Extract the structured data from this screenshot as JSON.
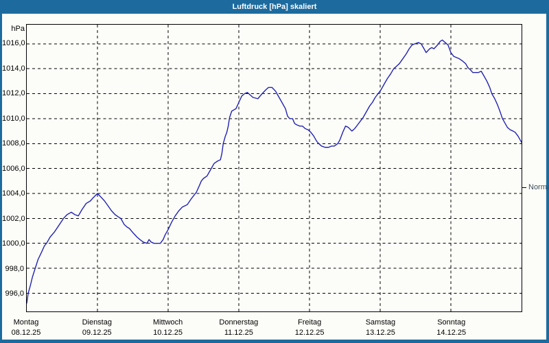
{
  "window": {
    "title": "Luftdruck [hPa] skaliert"
  },
  "colors": {
    "frame": "#1d6b9e",
    "paper": "#fcfdf8",
    "line": "#2121b3",
    "grid": "#000000",
    "normal_text": "#3d4c59"
  },
  "chart_data": {
    "type": "line",
    "title": "Luftdruck [hPa] skaliert",
    "ylabel": "hPa",
    "ylim": [
      994.5,
      1017.5
    ],
    "grid": "dashed",
    "legend_position": "none",
    "yticks": {
      "values": [
        1016,
        1014,
        1012,
        1010,
        1008,
        1006,
        1004,
        1002,
        1000,
        998,
        996
      ],
      "labels": [
        "1016,0",
        "1014,0",
        "1012,0",
        "1010,0",
        "1008,0",
        "1006,0",
        "1004,0",
        "1002,0",
        "1000,0",
        "998,0",
        "996,0"
      ]
    },
    "x_days": [
      {
        "name": "Montag",
        "date": "08.12.25"
      },
      {
        "name": "Dienstag",
        "date": "09.12.25"
      },
      {
        "name": "Mittwoch",
        "date": "10.12.25"
      },
      {
        "name": "Donnerstag",
        "date": "11.12.25"
      },
      {
        "name": "Freitag",
        "date": "12.12.25"
      },
      {
        "name": "Samstag",
        "date": "13.12.25"
      },
      {
        "name": "Sonntag",
        "date": "14.12.25"
      }
    ],
    "annotation": {
      "label": "Normal",
      "value": 1004.5
    },
    "series": [
      {
        "name": "Luftdruck",
        "points": [
          [
            0,
            995.2
          ],
          [
            0.02,
            996
          ],
          [
            0.05,
            996.6
          ],
          [
            0.08,
            997.3
          ],
          [
            0.12,
            998
          ],
          [
            0.16,
            998.7
          ],
          [
            0.21,
            999.3
          ],
          [
            0.25,
            999.8
          ],
          [
            0.28,
            1000
          ],
          [
            0.33,
            1000.5
          ],
          [
            0.39,
            1000.9
          ],
          [
            0.45,
            1001.4
          ],
          [
            0.52,
            1002
          ],
          [
            0.57,
            1002.3
          ],
          [
            0.63,
            1002.5
          ],
          [
            0.68,
            1002.3
          ],
          [
            0.73,
            1002.2
          ],
          [
            0.78,
            1002.7
          ],
          [
            0.84,
            1003.2
          ],
          [
            0.9,
            1003.4
          ],
          [
            0.93,
            1003.6
          ],
          [
            1,
            1004
          ],
          [
            1.05,
            1003.7
          ],
          [
            1.1,
            1003.4
          ],
          [
            1.15,
            1003
          ],
          [
            1.2,
            1002.6
          ],
          [
            1.25,
            1002.3
          ],
          [
            1.3,
            1002.1
          ],
          [
            1.33,
            1002
          ],
          [
            1.38,
            1001.5
          ],
          [
            1.42,
            1001.3
          ],
          [
            1.45,
            1001.2
          ],
          [
            1.51,
            1000.8
          ],
          [
            1.56,
            1000.5
          ],
          [
            1.6,
            1000.3
          ],
          [
            1.65,
            1000.1
          ],
          [
            1.7,
            1000
          ],
          [
            1.73,
            1000.3
          ],
          [
            1.76,
            1000.1
          ],
          [
            1.8,
            1000
          ],
          [
            1.85,
            1000
          ],
          [
            1.89,
            1000
          ],
          [
            1.93,
            1000.3
          ],
          [
            1.96,
            1000.7
          ],
          [
            2,
            1001.1
          ],
          [
            2.05,
            1001.7
          ],
          [
            2.1,
            1002.2
          ],
          [
            2.15,
            1002.6
          ],
          [
            2.2,
            1002.9
          ],
          [
            2.27,
            1003.1
          ],
          [
            2.33,
            1003.6
          ],
          [
            2.4,
            1004.1
          ],
          [
            2.44,
            1004.6
          ],
          [
            2.47,
            1005
          ],
          [
            2.5,
            1005.2
          ],
          [
            2.55,
            1005.4
          ],
          [
            2.61,
            1006
          ],
          [
            2.65,
            1006.4
          ],
          [
            2.7,
            1006.6
          ],
          [
            2.74,
            1006.7
          ],
          [
            2.76,
            1007.2
          ],
          [
            2.78,
            1008
          ],
          [
            2.81,
            1008.6
          ],
          [
            2.83,
            1008.9
          ],
          [
            2.85,
            1009.4
          ],
          [
            2.87,
            1010.1
          ],
          [
            2.9,
            1010.6
          ],
          [
            2.93,
            1010.7
          ],
          [
            2.96,
            1010.8
          ],
          [
            3,
            1011.3
          ],
          [
            3.04,
            1011.8
          ],
          [
            3.08,
            1012
          ],
          [
            3.12,
            1012.1
          ],
          [
            3.16,
            1011.9
          ],
          [
            3.2,
            1011.7
          ],
          [
            3.27,
            1011.6
          ],
          [
            3.33,
            1012
          ],
          [
            3.38,
            1012.3
          ],
          [
            3.42,
            1012.5
          ],
          [
            3.47,
            1012.5
          ],
          [
            3.52,
            1012.2
          ],
          [
            3.54,
            1012
          ],
          [
            3.58,
            1011.6
          ],
          [
            3.62,
            1011.2
          ],
          [
            3.66,
            1010.8
          ],
          [
            3.69,
            1010.2
          ],
          [
            3.72,
            1010
          ],
          [
            3.76,
            1010
          ],
          [
            3.79,
            1009.6
          ],
          [
            3.82,
            1009.5
          ],
          [
            3.86,
            1009.4
          ],
          [
            3.9,
            1009.4
          ],
          [
            3.94,
            1009.2
          ],
          [
            3.98,
            1009.1
          ],
          [
            4.02,
            1008.9
          ],
          [
            4.06,
            1008.6
          ],
          [
            4.1,
            1008.2
          ],
          [
            4.13,
            1008
          ],
          [
            4.17,
            1007.8
          ],
          [
            4.22,
            1007.7
          ],
          [
            4.27,
            1007.7
          ],
          [
            4.31,
            1007.8
          ],
          [
            4.35,
            1007.8
          ],
          [
            4.4,
            1008
          ],
          [
            4.43,
            1008.3
          ],
          [
            4.47,
            1008.9
          ],
          [
            4.51,
            1009.4
          ],
          [
            4.55,
            1009.3
          ],
          [
            4.6,
            1009
          ],
          [
            4.64,
            1009.2
          ],
          [
            4.68,
            1009.5
          ],
          [
            4.72,
            1009.8
          ],
          [
            4.76,
            1010.1
          ],
          [
            4.81,
            1010.6
          ],
          [
            4.85,
            1011
          ],
          [
            4.89,
            1011.3
          ],
          [
            4.93,
            1011.7
          ],
          [
            4.97,
            1012
          ],
          [
            5.01,
            1012.3
          ],
          [
            5.06,
            1012.8
          ],
          [
            5.1,
            1013.2
          ],
          [
            5.15,
            1013.6
          ],
          [
            5.19,
            1014
          ],
          [
            5.23,
            1014.2
          ],
          [
            5.27,
            1014.4
          ],
          [
            5.32,
            1014.8
          ],
          [
            5.37,
            1015.2
          ],
          [
            5.41,
            1015.6
          ],
          [
            5.45,
            1015.9
          ],
          [
            5.49,
            1016
          ],
          [
            5.54,
            1016.1
          ],
          [
            5.58,
            1016
          ],
          [
            5.62,
            1015.6
          ],
          [
            5.65,
            1015.3
          ],
          [
            5.7,
            1015.6
          ],
          [
            5.73,
            1015.7
          ],
          [
            5.76,
            1015.6
          ],
          [
            5.81,
            1015.9
          ],
          [
            5.85,
            1016.2
          ],
          [
            5.88,
            1016.3
          ],
          [
            5.92,
            1016.1
          ],
          [
            5.96,
            1015.9
          ],
          [
            6,
            1015.3
          ],
          [
            6.04,
            1015
          ],
          [
            6.08,
            1014.9
          ],
          [
            6.12,
            1014.8
          ],
          [
            6.17,
            1014.6
          ],
          [
            6.21,
            1014.4
          ],
          [
            6.24,
            1014.1
          ],
          [
            6.28,
            1013.9
          ],
          [
            6.31,
            1013.7
          ],
          [
            6.35,
            1013.7
          ],
          [
            6.39,
            1013.7
          ],
          [
            6.43,
            1013.8
          ],
          [
            6.47,
            1013.4
          ],
          [
            6.51,
            1013
          ],
          [
            6.55,
            1012.5
          ],
          [
            6.58,
            1012
          ],
          [
            6.62,
            1011.6
          ],
          [
            6.66,
            1011.1
          ],
          [
            6.7,
            1010.5
          ],
          [
            6.73,
            1010
          ],
          [
            6.77,
            1009.6
          ],
          [
            6.8,
            1009.3
          ],
          [
            6.84,
            1009.1
          ],
          [
            6.88,
            1009
          ],
          [
            6.91,
            1008.9
          ],
          [
            6.95,
            1008.6
          ],
          [
            6.98,
            1008.3
          ],
          [
            7,
            1008.1
          ]
        ]
      }
    ]
  }
}
